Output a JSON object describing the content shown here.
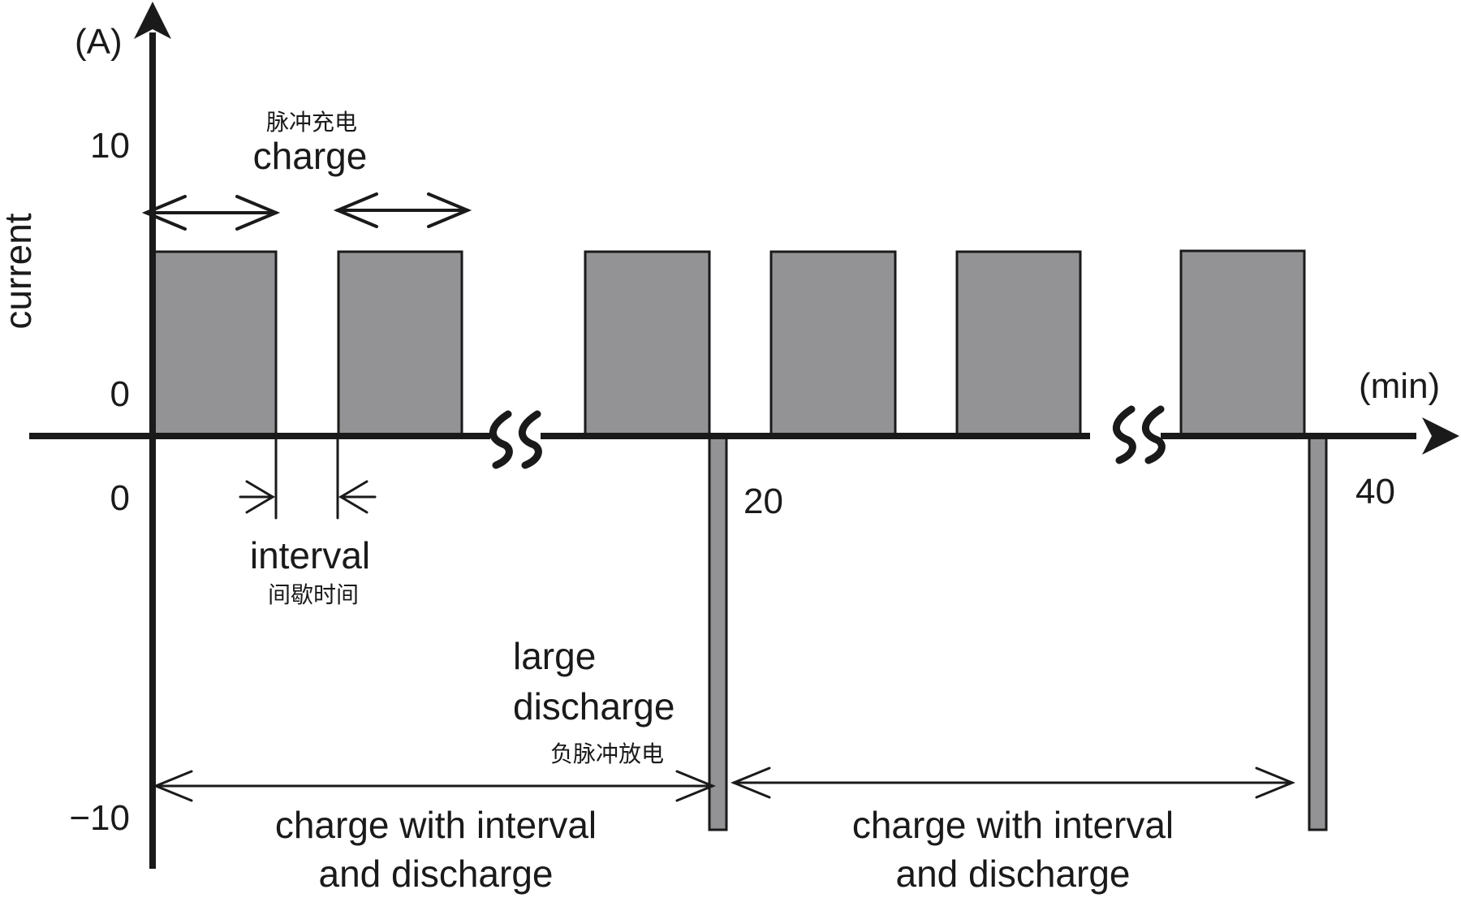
{
  "axes": {
    "y_unit": "(A)",
    "y_label": "current",
    "x_unit": "(min)",
    "y_ticks": {
      "ten": "10",
      "zero": "0",
      "minus_ten": "−10"
    },
    "x_ticks": {
      "zero": "0",
      "twenty": "20",
      "forty": "40"
    }
  },
  "annotations": {
    "charge_en": "charge",
    "charge_cn": "脉冲充电",
    "interval_en": "interval",
    "interval_cn": "间歇时间",
    "discharge_en_line1": "large",
    "discharge_en_line2": "discharge",
    "discharge_cn": "负脉冲放电",
    "cycle1_line1": "charge with interval",
    "cycle1_line2": "and discharge",
    "cycle2_line1": "charge with interval",
    "cycle2_line2": "and discharge"
  },
  "colors": {
    "pulse_fill": "#939396",
    "ink": "#1a1a1a"
  }
}
